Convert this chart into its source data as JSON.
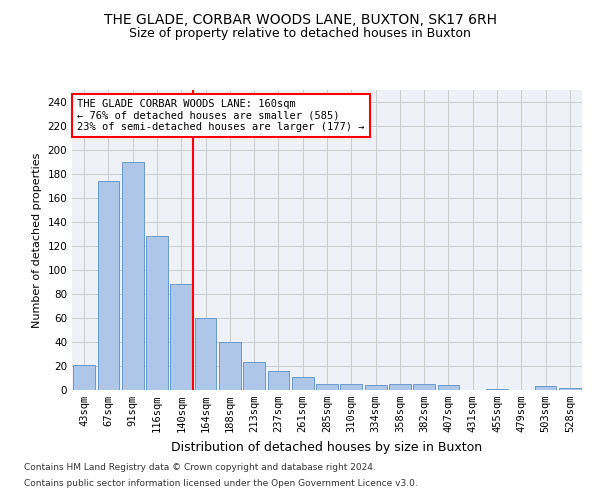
{
  "title": "THE GLADE, CORBAR WOODS LANE, BUXTON, SK17 6RH",
  "subtitle": "Size of property relative to detached houses in Buxton",
  "xlabel": "Distribution of detached houses by size in Buxton",
  "ylabel": "Number of detached properties",
  "categories": [
    "43sqm",
    "67sqm",
    "91sqm",
    "116sqm",
    "140sqm",
    "164sqm",
    "188sqm",
    "213sqm",
    "237sqm",
    "261sqm",
    "285sqm",
    "310sqm",
    "334sqm",
    "358sqm",
    "382sqm",
    "407sqm",
    "431sqm",
    "455sqm",
    "479sqm",
    "503sqm",
    "528sqm"
  ],
  "values": [
    21,
    174,
    190,
    128,
    88,
    60,
    40,
    23,
    16,
    11,
    5,
    5,
    4,
    5,
    5,
    4,
    0,
    1,
    0,
    3,
    2
  ],
  "bar_color": "#aec6e8",
  "bar_edge_color": "#6699cc",
  "vline_position": 4.5,
  "vline_color": "red",
  "ylim": [
    0,
    250
  ],
  "yticks": [
    0,
    20,
    40,
    60,
    80,
    100,
    120,
    140,
    160,
    180,
    200,
    220,
    240
  ],
  "annotation_title": "THE GLADE CORBAR WOODS LANE: 160sqm",
  "annotation_line1": "← 76% of detached houses are smaller (585)",
  "annotation_line2": "23% of semi-detached houses are larger (177) →",
  "annotation_box_color": "red",
  "footer1": "Contains HM Land Registry data © Crown copyright and database right 2024.",
  "footer2": "Contains public sector information licensed under the Open Government Licence v3.0.",
  "bg_color": "#eef2f7",
  "grid_color": "#cccccc",
  "title_fontsize": 10,
  "subtitle_fontsize": 9,
  "ylabel_fontsize": 8,
  "xlabel_fontsize": 9,
  "tick_fontsize": 7.5,
  "annotation_fontsize": 7.5,
  "footer_fontsize": 6.5
}
